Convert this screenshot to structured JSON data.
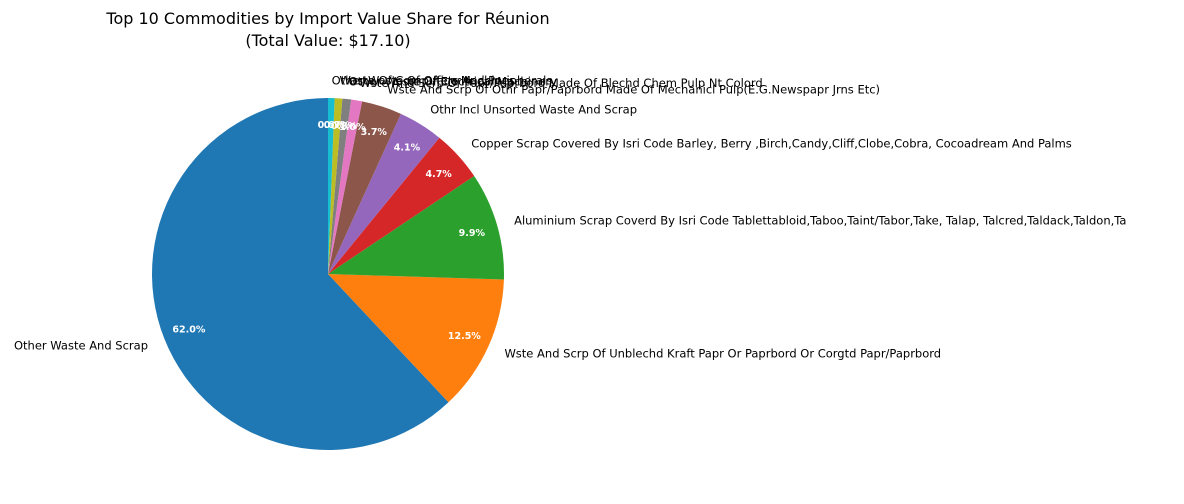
{
  "chart_data": {
    "type": "pie",
    "title": "Top 10 Commodities by Import Value Share for Réunion",
    "subtitle": "(Total Value: $17.10)",
    "start_angle_deg": 90,
    "direction": "counterclockwise",
    "slices": [
      {
        "label": "Other Waste And Scrap",
        "value": 62.0,
        "pct_label": "62.0%",
        "color": "#1f77b4"
      },
      {
        "label": "Wste And Scrp Of Unblechd Kraft Papr Or Paprbord Or Corgtd Papr/Paprbord",
        "value": 12.5,
        "pct_label": "12.5%",
        "color": "#ff7f0e"
      },
      {
        "label": "Aluminium Scrap Coverd By Isri Code Tablettabloid,Taboo,Taint/Tabor,Take, Talap, Talcred,Taldack,Taldon,Ta",
        "value": 9.9,
        "pct_label": "9.9%",
        "color": "#2ca02c"
      },
      {
        "label": "Copper Scrap Covered By Isri Code Barley, Berry ,Birch,Candy,Cliff,Clobe,Cobra, Cocoadream And Palms",
        "value": 4.7,
        "pct_label": "4.7%",
        "color": "#d62728"
      },
      {
        "label": "Othr Incl Unsorted Waste And Scrap",
        "value": 4.1,
        "pct_label": "4.1%",
        "color": "#9467bd"
      },
      {
        "label": "Wste And Scrp Of Othr Papr/Paprbord Made Of Mechanicl Pulp(E.G.Newspapr Jrns Etc)",
        "value": 3.7,
        "pct_label": "3.7%",
        "color": "#8c564b"
      },
      {
        "label": "Wste And Scrp Of Papr/Paprbord Made Of Blechd Chem Pulp Nt Colord",
        "value": 1.0,
        "pct_label": "1.0%",
        "color": "#e377c2"
      },
      {
        "label": "Other Waste Of Electrical Machinery",
        "value": 0.8,
        "pct_label": "0.8%",
        "color": "#7f7f7f"
      },
      {
        "label": "Waste Of Computers And Peripherals",
        "value": 0.7,
        "pct_label": "0.7%",
        "color": "#bcbd22"
      },
      {
        "label": "Other Waste Of Office Machines",
        "value": 0.6,
        "pct_label": "0.6%",
        "color": "#17becf"
      }
    ]
  }
}
